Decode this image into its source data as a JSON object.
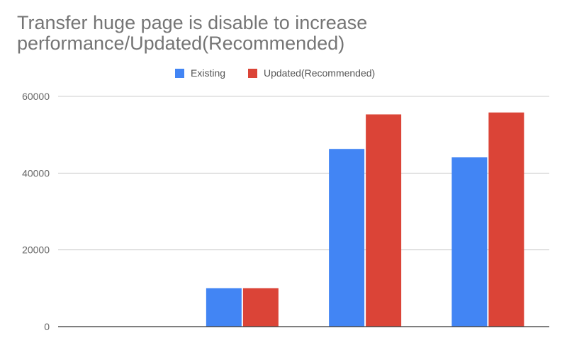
{
  "chart_data": {
    "type": "bar",
    "title": "Transfer huge page is disable to increase performance/Updated(Recommended)",
    "xlabel": "",
    "ylabel": "",
    "categories": [
      "",
      "",
      "",
      ""
    ],
    "series": [
      {
        "name": "Existing",
        "color": "#4285f4",
        "values": [
          0,
          10000,
          46300,
          44100
        ]
      },
      {
        "name": "Updated(Recommended)",
        "color": "#db4437",
        "values": [
          0,
          10000,
          55300,
          55800
        ]
      }
    ],
    "ylim": [
      0,
      60000
    ],
    "yticks": [
      0,
      20000,
      40000,
      60000
    ],
    "grid": true,
    "legend": "top"
  }
}
